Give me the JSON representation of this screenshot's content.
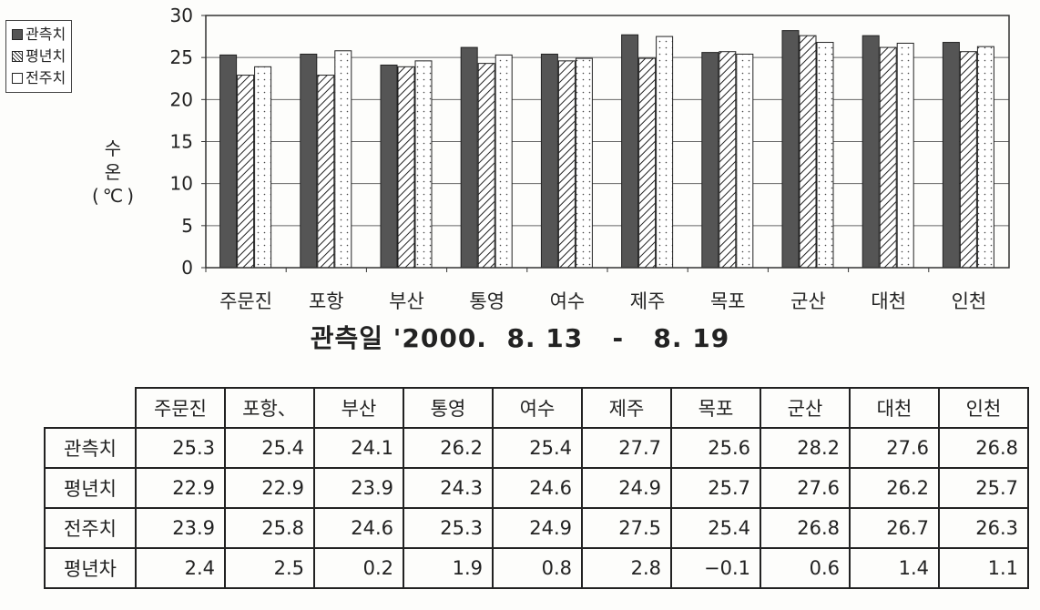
{
  "chart_data": {
    "type": "bar",
    "categories": [
      "주문진",
      "포항",
      "부산",
      "통영",
      "여수",
      "제주",
      "목포",
      "군산",
      "대천",
      "인천"
    ],
    "series": [
      {
        "name": "관측치",
        "values": [
          25.3,
          25.4,
          24.1,
          26.2,
          25.4,
          27.7,
          25.6,
          28.2,
          27.6,
          26.8
        ]
      },
      {
        "name": "평년치",
        "values": [
          22.9,
          22.9,
          23.9,
          24.3,
          24.6,
          24.9,
          25.7,
          27.6,
          26.2,
          25.7
        ]
      },
      {
        "name": "전주치",
        "values": [
          23.9,
          25.8,
          24.6,
          25.3,
          24.9,
          27.5,
          25.4,
          26.8,
          26.7,
          26.3
        ]
      }
    ],
    "ylabel": [
      "수",
      "온",
      "(℃)"
    ],
    "xlabel": "관측일 '2000.  8. 13   -   8. 19",
    "ylim": [
      0,
      30
    ],
    "yticks": [
      0,
      5,
      10,
      15,
      20,
      25,
      30
    ],
    "grid": true,
    "legend": "top-left",
    "colors": {
      "obs": "#555555",
      "norm_hatch": "#222222",
      "prev": "#ffffff"
    }
  },
  "table": {
    "columns": [
      "주문진",
      "포항、",
      "부산",
      "통영",
      "여수",
      "제주",
      "목포",
      "군산",
      "대천",
      "인천"
    ],
    "rows": [
      {
        "label": "관측치",
        "values": [
          "25.3",
          "25.4",
          "24.1",
          "26.2",
          "25.4",
          "27.7",
          "25.6",
          "28.2",
          "27.6",
          "26.8"
        ]
      },
      {
        "label": "평년치",
        "values": [
          "22.9",
          "22.9",
          "23.9",
          "24.3",
          "24.6",
          "24.9",
          "25.7",
          "27.6",
          "26.2",
          "25.7"
        ]
      },
      {
        "label": "전주치",
        "values": [
          "23.9",
          "25.8",
          "24.6",
          "25.3",
          "24.9",
          "27.5",
          "25.4",
          "26.8",
          "26.7",
          "26.3"
        ]
      },
      {
        "label": "평년차",
        "values": [
          "2.4",
          "2.5",
          "0.2",
          "1.9",
          "0.8",
          "2.8",
          "−0.1",
          "0.6",
          "1.4",
          "1.1"
        ]
      }
    ]
  }
}
